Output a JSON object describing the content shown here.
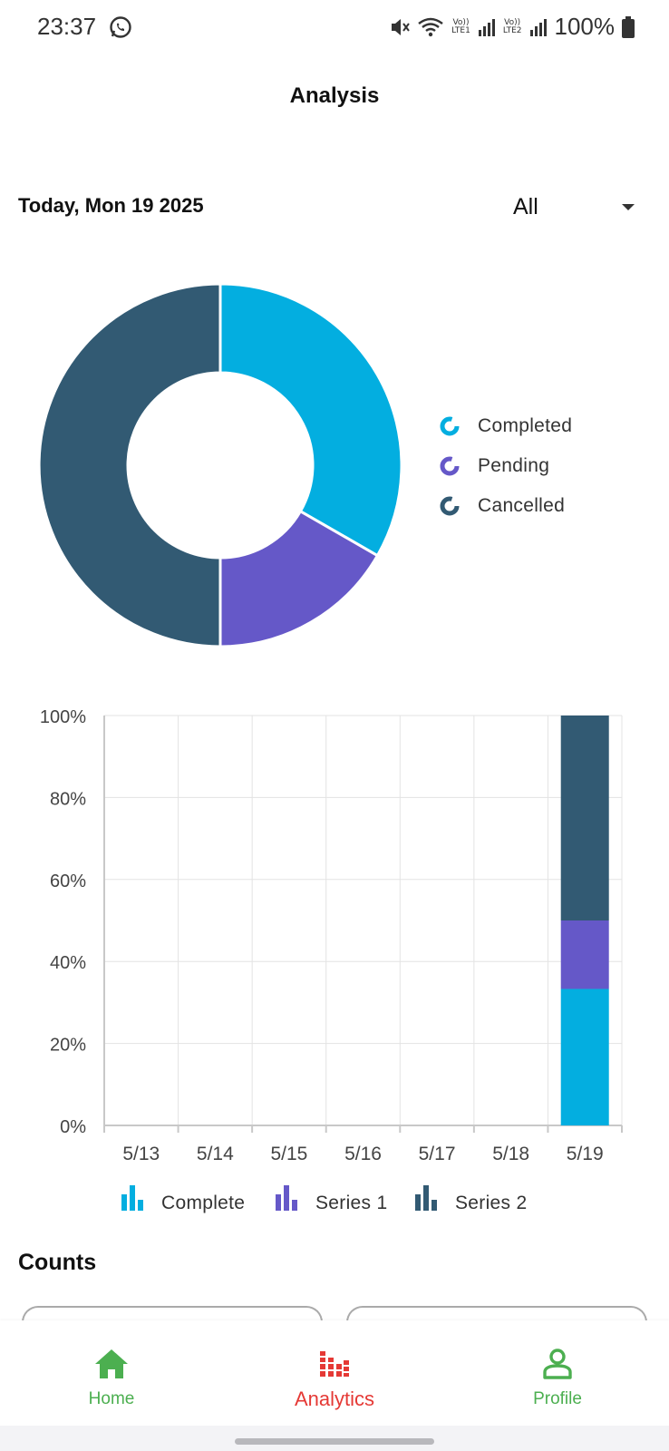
{
  "status_bar": {
    "time": "23:37",
    "battery": "100%",
    "sim1_label_top": "Vo))",
    "sim1_label_bottom": "LTE1",
    "sim2_label_top": "Vo))",
    "sim2_label_bottom": "LTE2",
    "icons": [
      "whatsapp-icon",
      "mute-icon",
      "wifi-icon",
      "signal-icon",
      "battery-icon"
    ]
  },
  "header": {
    "title": "Analysis"
  },
  "filter": {
    "date_label": "Today, Mon 19 2025",
    "selected": "All"
  },
  "donut": {
    "legend": [
      {
        "label": "Completed",
        "color": "#03aee0"
      },
      {
        "label": "Pending",
        "color": "#6558c8"
      },
      {
        "label": "Cancelled",
        "color": "#325a73"
      }
    ]
  },
  "chart_data": {
    "type": "bar",
    "stacked": true,
    "categories": [
      "5/13",
      "5/14",
      "5/15",
      "5/16",
      "5/17",
      "5/18",
      "5/19"
    ],
    "series": [
      {
        "name": "Complete",
        "color": "#03aee0",
        "values": [
          0,
          0,
          0,
          0,
          0,
          0,
          33.3
        ]
      },
      {
        "name": "Series 1",
        "color": "#6558c8",
        "values": [
          0,
          0,
          0,
          0,
          0,
          0,
          16.7
        ]
      },
      {
        "name": "Series 2",
        "color": "#325a73",
        "values": [
          0,
          0,
          0,
          0,
          0,
          0,
          50
        ]
      }
    ],
    "ylim": [
      0,
      100
    ],
    "y_ticks": [
      "0%",
      "20%",
      "40%",
      "60%",
      "80%",
      "100%"
    ],
    "grid": true,
    "legend_position": "bottom"
  },
  "counts": {
    "title": "Counts"
  },
  "bottom_nav": {
    "items": [
      {
        "label": "Home",
        "icon": "home-icon"
      },
      {
        "label": "Analytics",
        "icon": "analytics-icon",
        "active": true
      },
      {
        "label": "Profile",
        "icon": "profile-icon"
      }
    ]
  }
}
